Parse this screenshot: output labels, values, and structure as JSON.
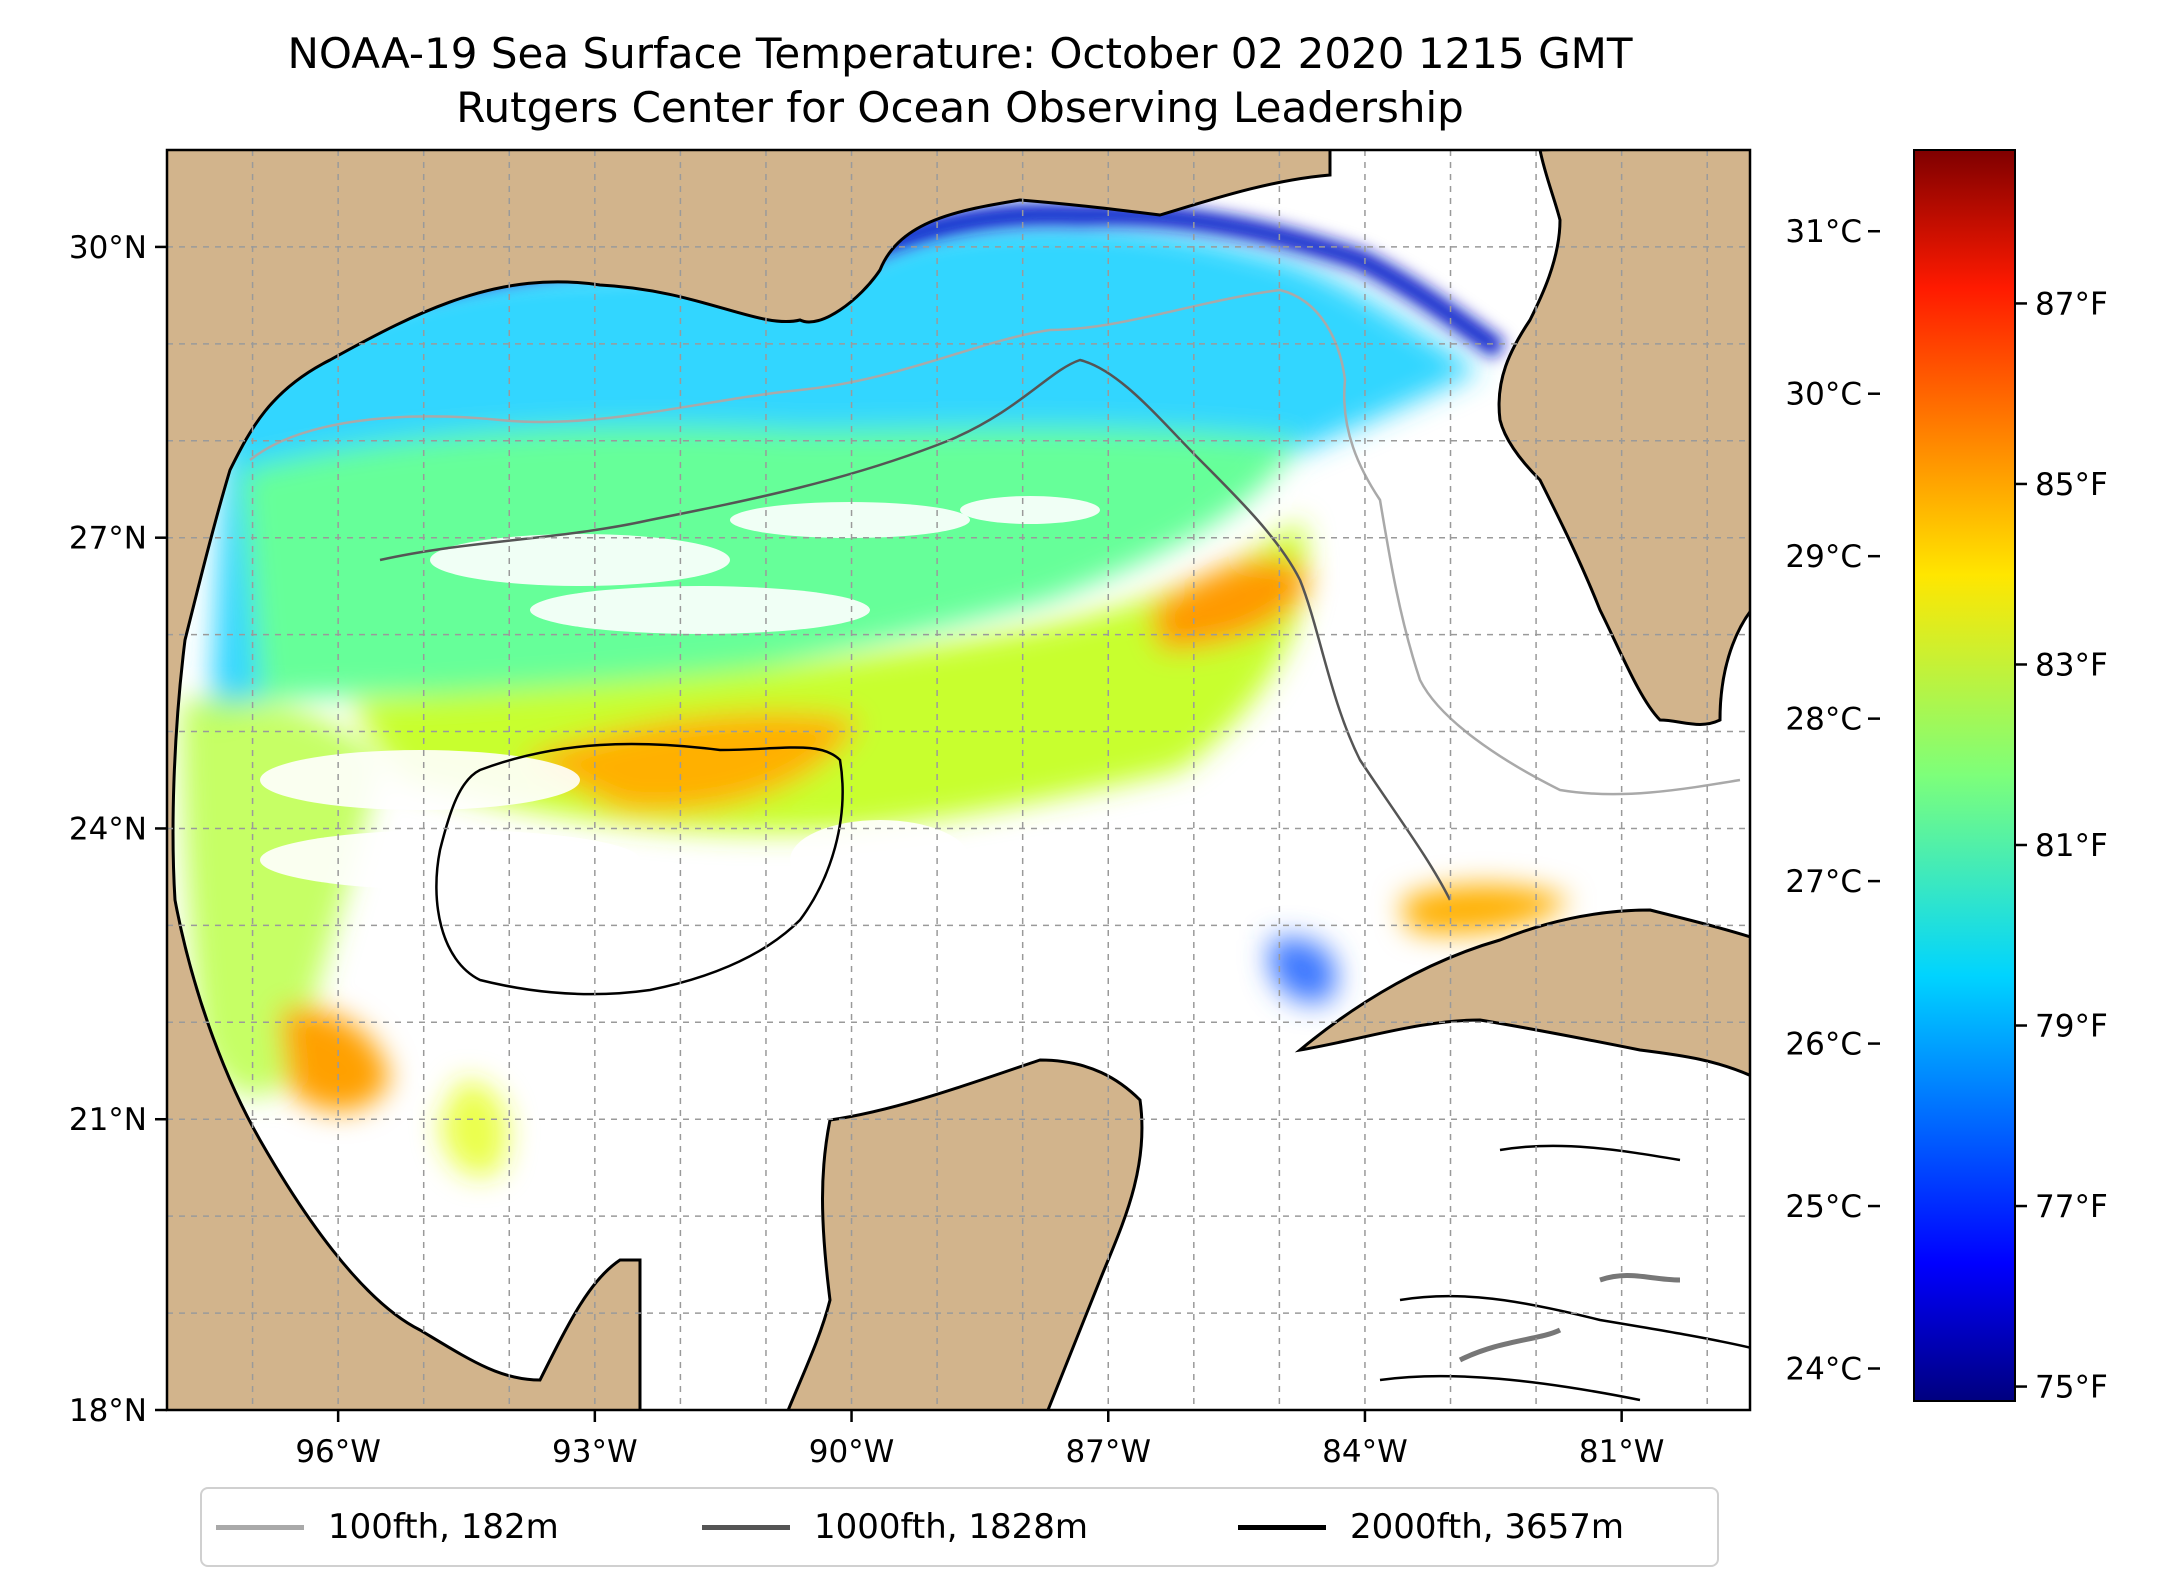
{
  "title": "NOAA-19 Sea Surface Temperature: October 02 2020 1215 GMT",
  "subtitle": "Rutgers Center for Ocean Observing Leadership",
  "map": {
    "extent": {
      "lon": [
        -98.0,
        -79.5
      ],
      "lat": [
        18.0,
        31.0
      ]
    },
    "lat_ticks": [
      {
        "value": 30,
        "label": "30°N"
      },
      {
        "value": 27,
        "label": "27°N"
      },
      {
        "value": 24,
        "label": "24°N"
      },
      {
        "value": 21,
        "label": "21°N"
      },
      {
        "value": 18,
        "label": "18°N"
      }
    ],
    "lon_ticks": [
      {
        "value": -96,
        "label": "96°W"
      },
      {
        "value": -93,
        "label": "93°W"
      },
      {
        "value": -90,
        "label": "90°W"
      },
      {
        "value": -87,
        "label": "87°W"
      },
      {
        "value": -84,
        "label": "84°W"
      },
      {
        "value": -81,
        "label": "81°W"
      }
    ],
    "gridlines": true,
    "land_color": "#d2b48c",
    "missing_data_color": "#ffffff",
    "colormap": "jet"
  },
  "colorbar": {
    "range_celsius": [
      23.8,
      31.5
    ],
    "celsius_ticks": [
      {
        "value": 31,
        "label": "31°C"
      },
      {
        "value": 30,
        "label": "30°C"
      },
      {
        "value": 29,
        "label": "29°C"
      },
      {
        "value": 28,
        "label": "28°C"
      },
      {
        "value": 27,
        "label": "27°C"
      },
      {
        "value": 26,
        "label": "26°C"
      },
      {
        "value": 25,
        "label": "25°C"
      },
      {
        "value": 24,
        "label": "24°C"
      }
    ],
    "fahrenheit_ticks": [
      {
        "value": 87,
        "label": "87°F"
      },
      {
        "value": 85,
        "label": "85°F"
      },
      {
        "value": 83,
        "label": "83°F"
      },
      {
        "value": 81,
        "label": "81°F"
      },
      {
        "value": 79,
        "label": "79°F"
      },
      {
        "value": 77,
        "label": "77°F"
      },
      {
        "value": 75,
        "label": "75°F"
      }
    ]
  },
  "legend": {
    "placement": "bottom-center",
    "items": [
      {
        "label": "100fth, 182m",
        "color": "#a9a9a9"
      },
      {
        "label": "1000fth, 1828m",
        "color": "#555555"
      },
      {
        "label": "2000fth, 3657m",
        "color": "#000000"
      }
    ]
  }
}
